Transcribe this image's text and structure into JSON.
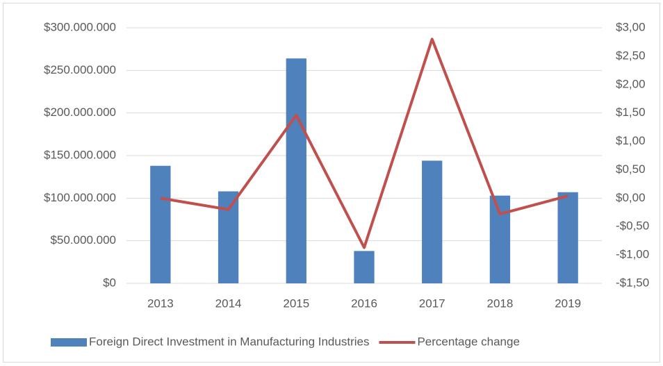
{
  "chart_data": {
    "type": "bar",
    "categories": [
      "2013",
      "2014",
      "2015",
      "2016",
      "2017",
      "2018",
      "2019"
    ],
    "series": [
      {
        "name": "Foreign Direct Investment in Manufacturing Industries",
        "type": "bar",
        "color": "#4f81bd",
        "values": [
          138000000,
          108000000,
          264000000,
          38000000,
          144000000,
          103000000,
          107000000
        ]
      },
      {
        "name": "Percentage change",
        "type": "line",
        "axis": "y2",
        "color": "#c0504d",
        "values": [
          0.0,
          -0.2,
          1.46,
          -0.87,
          2.8,
          -0.28,
          0.04
        ]
      }
    ],
    "ylim": [
      0,
      300000000
    ],
    "yticks": [
      {
        "value": 0,
        "label": "$0"
      },
      {
        "value": 50000000,
        "label": "$50.000.000"
      },
      {
        "value": 100000000,
        "label": "$100.000.000"
      },
      {
        "value": 150000000,
        "label": "$150.000.000"
      },
      {
        "value": 200000000,
        "label": "$200.000.000"
      },
      {
        "value": 250000000,
        "label": "$250.000.000"
      },
      {
        "value": 300000000,
        "label": "$300.000.000"
      }
    ],
    "y2lim": [
      -1.5,
      3.0
    ],
    "y2ticks": [
      {
        "value": -1.5,
        "label": "-$1,50"
      },
      {
        "value": -1.0,
        "label": "-$1,00"
      },
      {
        "value": -0.5,
        "label": "-$0,50"
      },
      {
        "value": 0,
        "label": "$0,00"
      },
      {
        "value": 0.5,
        "label": "$0,50"
      },
      {
        "value": 1.0,
        "label": "$1,00"
      },
      {
        "value": 1.5,
        "label": "$1,50"
      },
      {
        "value": 2.0,
        "label": "$2,00"
      },
      {
        "value": 2.5,
        "label": "$2,50"
      },
      {
        "value": 3.0,
        "label": "$3,00"
      }
    ],
    "grid": true,
    "legend": "bottom"
  }
}
